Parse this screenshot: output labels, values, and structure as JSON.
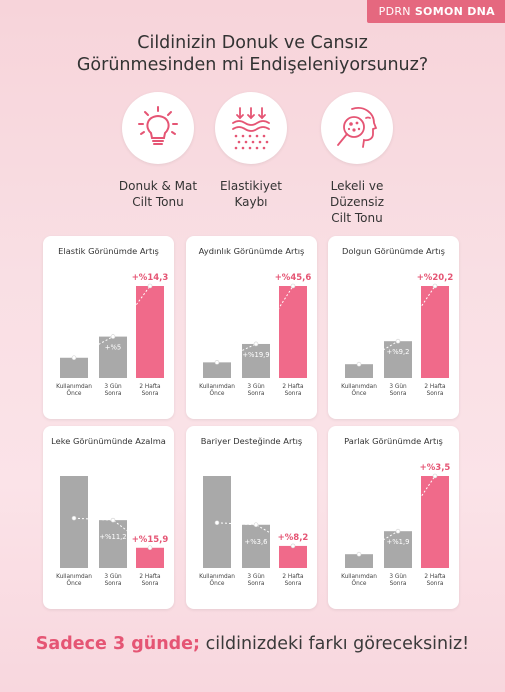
{
  "brand": {
    "prefix": "PDRN",
    "name": "SOMON DNA"
  },
  "title": {
    "line1": "Cildinizin Donuk ve Cansız",
    "line2": "Görünmesinden mi Endişeleniyorsunuz?"
  },
  "features": [
    {
      "icon": "lightbulb-icon",
      "line1": "Donuk & Mat",
      "line2": "Cilt Tonu"
    },
    {
      "icon": "skin-layers-icon",
      "line1": "Elastikiyet",
      "line2": "Kaybı"
    },
    {
      "icon": "magnifier-spots-icon",
      "line1": "Lekeli ve Düzensiz",
      "line2": "Cilt Tonu"
    }
  ],
  "colors": {
    "accent": "#f06a8a",
    "gray": "#a9a9a9",
    "text_accent": "#e55574"
  },
  "bar_labels": [
    {
      "line1": "Kullanımdan",
      "line2": "Önce"
    },
    {
      "line1": "3 Gün",
      "line2": "Sonra"
    },
    {
      "line1": "2 Hafta",
      "line2": "Sonra"
    }
  ],
  "chart_data": [
    {
      "type": "bar",
      "title": "Elastik Görünümde Artış",
      "trend": "up",
      "categories": [
        "Kullanımdan Önce",
        "3 Gün Sonra",
        "2 Hafta Sonra"
      ],
      "values": [
        22,
        45,
        100
      ],
      "data_labels": [
        "",
        "+%5",
        "+%14,3"
      ]
    },
    {
      "type": "bar",
      "title": "Aydınlık Görünümde Artış",
      "trend": "up",
      "categories": [
        "Kullanımdan Önce",
        "3 Gün Sonra",
        "2 Hafta Sonra"
      ],
      "values": [
        17,
        37,
        100
      ],
      "data_labels": [
        "",
        "+%19,9",
        "+%45,6"
      ]
    },
    {
      "type": "bar",
      "title": "Dolgun Görünümde Artış",
      "trend": "up",
      "categories": [
        "Kullanımdan Önce",
        "3 Gün Sonra",
        "2 Hafta Sonra"
      ],
      "values": [
        15,
        40,
        100
      ],
      "data_labels": [
        "",
        "+%9,2",
        "+%20,2"
      ]
    },
    {
      "type": "bar",
      "title": "Leke Görünümünde Azalma",
      "trend": "down",
      "categories": [
        "Kullanımdan Önce",
        "3 Gün Sonra",
        "2 Hafta Sonra"
      ],
      "values": [
        100,
        52,
        22
      ],
      "data_labels": [
        "",
        "+%11,2",
        "+%15,9"
      ]
    },
    {
      "type": "bar",
      "title": "Bariyer Desteğinde Artış",
      "trend": "down",
      "categories": [
        "Kullanımdan Önce",
        "3 Gün Sonra",
        "2 Hafta Sonra"
      ],
      "values": [
        100,
        47,
        24
      ],
      "data_labels": [
        "",
        "+%3,6",
        "+%8,2"
      ]
    },
    {
      "type": "bar",
      "title": "Parlak Görünümde Artış",
      "trend": "up",
      "categories": [
        "Kullanımdan Önce",
        "3 Gün Sonra",
        "2 Hafta Sonra"
      ],
      "values": [
        15,
        40,
        100
      ],
      "data_labels": [
        "",
        "+%1,9",
        "+%3,5"
      ]
    }
  ],
  "bottom": {
    "highlight": "Sadece 3 günde;",
    "rest": " cildinizdeki farkı göreceksiniz!"
  }
}
